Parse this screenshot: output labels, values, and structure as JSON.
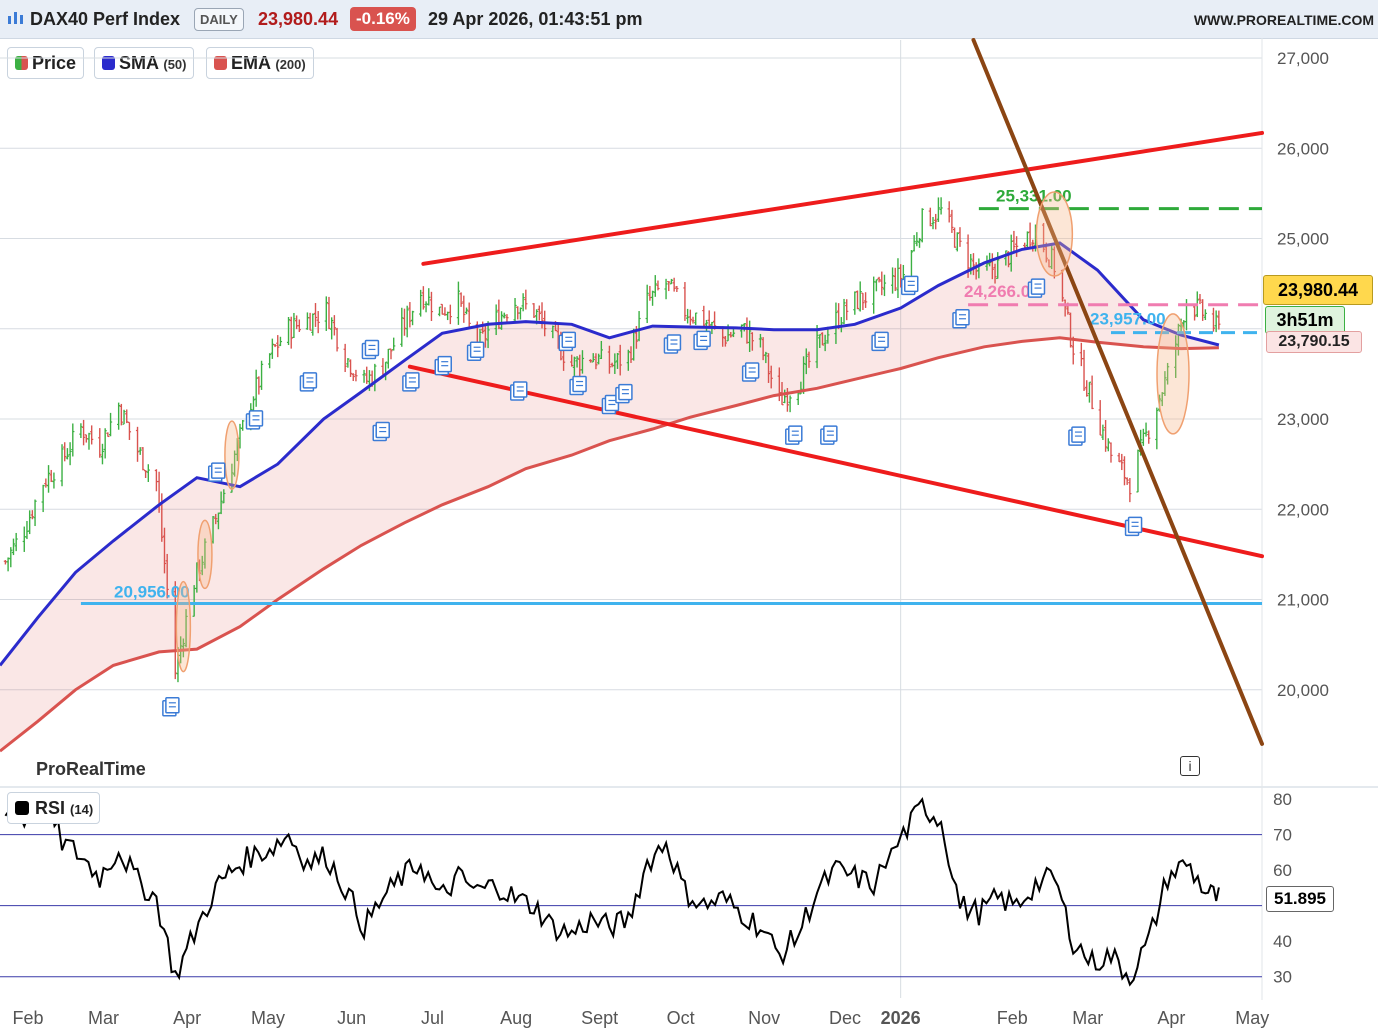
{
  "header": {
    "symbol": "DAX40 Perf Index",
    "timeframe": "DAILY",
    "last_price": "23,980.44",
    "change_pct": "-0.16%",
    "timestamp": "29 Apr 2026, 01:43:51 pm",
    "site": "WWW.PROREALTIME.COM"
  },
  "legend": {
    "price": "Price",
    "sma_label": "SMA",
    "sma_param": "(50)",
    "ema_label": "EMA",
    "ema_param": "(200)",
    "rsi_label": "RSI",
    "rsi_param": "(14)"
  },
  "colors": {
    "sma": "#2b2bcc",
    "ema": "#d9534f",
    "trendline": "#ee1c1c",
    "downtrend": "#8b4513",
    "support": "#3fb3ee",
    "resistance": "#2eaa3a",
    "pink_level": "#f07cb0",
    "up_bar": "#3cb043",
    "down_bar": "#d9534f"
  },
  "watermark": "ProRealTime",
  "tags": {
    "last_price": "23,980.44",
    "countdown": "3h51m",
    "ema_value": "23,790.15",
    "rsi_value": "51.895"
  },
  "chart_data": [
    {
      "type": "candlestick",
      "panel": "price",
      "y_ticks": [
        20000,
        21000,
        22000,
        23000,
        24000,
        25000,
        26000,
        27000
      ],
      "y_tick_labels": [
        "20,000",
        "21,000",
        "22,000",
        "23,000",
        "24,000",
        "25,000",
        "26,000",
        "27,000"
      ],
      "ylim": [
        19000,
        27200
      ],
      "x_ticks": [
        "Feb",
        "Mar",
        "Apr",
        "May",
        "Jun",
        "Jul",
        "Aug",
        "Sept",
        "Oct",
        "Nov",
        "Dec",
        "2026",
        "Feb",
        "Mar",
        "Apr",
        "May"
      ],
      "x_range": [
        "2025-02-01",
        "2026-05-15"
      ],
      "annotations": {
        "levels": [
          {
            "label": "20,956.00",
            "value": 20956
          },
          {
            "label": "25,331.00",
            "value": 25331
          },
          {
            "label": "24,266.00",
            "value": 24266
          },
          {
            "label": "23,957.00",
            "value": 23957
          }
        ],
        "trendlines": [
          {
            "name": "upper-channel",
            "from": [
              "2025-07-08",
              24720
            ],
            "to": [
              "2026-05-15",
              26170
            ]
          },
          {
            "name": "lower-channel",
            "from": [
              "2025-07-03",
              23580
            ],
            "to": [
              "2026-05-15",
              21480
            ]
          },
          {
            "name": "downtrend",
            "from": [
              "2026-01-28",
              27200
            ],
            "to": [
              "2026-05-15",
              19400
            ]
          }
        ]
      },
      "close_path": [
        [
          "2025-02-03",
          21420
        ],
        [
          "2025-02-10",
          21780
        ],
        [
          "2025-02-17",
          22300
        ],
        [
          "2025-02-24",
          22550
        ],
        [
          "2025-03-03",
          22900
        ],
        [
          "2025-03-10",
          22700
        ],
        [
          "2025-03-17",
          23150
        ],
        [
          "2025-03-24",
          22650
        ],
        [
          "2025-03-31",
          22300
        ],
        [
          "2025-04-07",
          20200
        ],
        [
          "2025-04-14",
          21200
        ],
        [
          "2025-04-22",
          21900
        ],
        [
          "2025-04-28",
          22500
        ],
        [
          "2025-05-05",
          23200
        ],
        [
          "2025-05-12",
          23700
        ],
        [
          "2025-05-19",
          24000
        ],
        [
          "2025-05-26",
          24100
        ],
        [
          "2025-06-02",
          24200
        ],
        [
          "2025-06-09",
          23700
        ],
        [
          "2025-06-16",
          23400
        ],
        [
          "2025-06-23",
          23600
        ],
        [
          "2025-06-30",
          24000
        ],
        [
          "2025-07-07",
          24400
        ],
        [
          "2025-07-14",
          24200
        ],
        [
          "2025-07-21",
          24300
        ],
        [
          "2025-07-28",
          23800
        ],
        [
          "2025-08-04",
          24100
        ],
        [
          "2025-08-11",
          24300
        ],
        [
          "2025-08-18",
          24200
        ],
        [
          "2025-08-25",
          23900
        ],
        [
          "2025-09-01",
          23600
        ],
        [
          "2025-09-08",
          23700
        ],
        [
          "2025-09-15",
          23600
        ],
        [
          "2025-09-22",
          23700
        ],
        [
          "2025-09-29",
          24300
        ],
        [
          "2025-10-06",
          24500
        ],
        [
          "2025-10-13",
          24200
        ],
        [
          "2025-10-20",
          24100
        ],
        [
          "2025-10-27",
          23900
        ],
        [
          "2025-11-03",
          24000
        ],
        [
          "2025-11-10",
          23800
        ],
        [
          "2025-11-17",
          23200
        ],
        [
          "2025-11-24",
          23400
        ],
        [
          "2025-12-01",
          23800
        ],
        [
          "2025-12-08",
          24100
        ],
        [
          "2025-12-15",
          24300
        ],
        [
          "2025-12-22",
          24400
        ],
        [
          "2026-01-02",
          24600
        ],
        [
          "2026-01-09",
          25200
        ],
        [
          "2026-01-16",
          25300
        ],
        [
          "2026-01-23",
          24900
        ],
        [
          "2026-01-30",
          24600
        ],
        [
          "2026-02-06",
          24700
        ],
        [
          "2026-02-13",
          24900
        ],
        [
          "2026-02-20",
          25100
        ],
        [
          "2026-02-27",
          24700
        ],
        [
          "2026-03-06",
          23800
        ],
        [
          "2026-03-13",
          23200
        ],
        [
          "2026-03-20",
          22600
        ],
        [
          "2026-03-27",
          22300
        ],
        [
          "2026-04-03",
          22900
        ],
        [
          "2026-04-10",
          23500
        ],
        [
          "2026-04-17",
          24300
        ],
        [
          "2026-04-24",
          24150
        ],
        [
          "2026-04-29",
          23980
        ]
      ],
      "sma_50": [
        [
          "2025-02-01",
          20270
        ],
        [
          "2025-02-15",
          20800
        ],
        [
          "2025-03-01",
          21300
        ],
        [
          "2025-03-15",
          21650
        ],
        [
          "2025-04-01",
          22050
        ],
        [
          "2025-04-15",
          22350
        ],
        [
          "2025-05-01",
          22250
        ],
        [
          "2025-05-15",
          22500
        ],
        [
          "2025-06-01",
          23000
        ],
        [
          "2025-06-15",
          23300
        ],
        [
          "2025-07-01",
          23650
        ],
        [
          "2025-07-15",
          23950
        ],
        [
          "2025-08-01",
          24050
        ],
        [
          "2025-08-15",
          24080
        ],
        [
          "2025-09-01",
          24050
        ],
        [
          "2025-09-15",
          23900
        ],
        [
          "2025-10-01",
          24030
        ],
        [
          "2025-10-15",
          24020
        ],
        [
          "2025-11-01",
          24010
        ],
        [
          "2025-11-15",
          23990
        ],
        [
          "2025-12-01",
          23990
        ],
        [
          "2025-12-15",
          24050
        ],
        [
          "2026-01-01",
          24230
        ],
        [
          "2026-01-15",
          24480
        ],
        [
          "2026-02-01",
          24730
        ],
        [
          "2026-02-15",
          24880
        ],
        [
          "2026-03-01",
          24950
        ],
        [
          "2026-03-15",
          24650
        ],
        [
          "2026-04-01",
          24100
        ],
        [
          "2026-04-15",
          23930
        ],
        [
          "2026-04-29",
          23820
        ]
      ],
      "ema_200": [
        [
          "2025-02-01",
          19320
        ],
        [
          "2025-02-15",
          19650
        ],
        [
          "2025-03-01",
          20000
        ],
        [
          "2025-03-15",
          20270
        ],
        [
          "2025-04-01",
          20420
        ],
        [
          "2025-04-15",
          20450
        ],
        [
          "2025-05-01",
          20700
        ],
        [
          "2025-05-15",
          21000
        ],
        [
          "2025-06-01",
          21340
        ],
        [
          "2025-06-15",
          21600
        ],
        [
          "2025-07-01",
          21850
        ],
        [
          "2025-07-15",
          22050
        ],
        [
          "2025-08-01",
          22250
        ],
        [
          "2025-08-15",
          22450
        ],
        [
          "2025-09-01",
          22600
        ],
        [
          "2025-09-15",
          22760
        ],
        [
          "2025-10-01",
          22890
        ],
        [
          "2025-10-15",
          23020
        ],
        [
          "2025-11-01",
          23150
        ],
        [
          "2025-11-15",
          23260
        ],
        [
          "2025-12-01",
          23340
        ],
        [
          "2025-12-15",
          23440
        ],
        [
          "2026-01-01",
          23560
        ],
        [
          "2026-01-15",
          23680
        ],
        [
          "2026-02-01",
          23800
        ],
        [
          "2026-02-15",
          23860
        ],
        [
          "2026-03-01",
          23900
        ],
        [
          "2026-03-15",
          23850
        ],
        [
          "2026-04-01",
          23800
        ],
        [
          "2026-04-15",
          23780
        ],
        [
          "2026-04-29",
          23790
        ]
      ]
    },
    {
      "type": "line",
      "panel": "rsi",
      "y_ticks": [
        30,
        40,
        50,
        60,
        70,
        80
      ],
      "y_tick_labels": [
        "30",
        "40",
        "",
        "60",
        "70",
        "80"
      ],
      "ylim": [
        24,
        82
      ],
      "reference_lines": [
        30,
        50,
        70
      ],
      "x": [
        "2025-02-03",
        "2025-02-10",
        "2025-02-17",
        "2025-02-24",
        "2025-03-03",
        "2025-03-10",
        "2025-03-17",
        "2025-03-24",
        "2025-03-31",
        "2025-04-07",
        "2025-04-14",
        "2025-04-22",
        "2025-04-28",
        "2025-05-05",
        "2025-05-12",
        "2025-05-19",
        "2025-05-26",
        "2025-06-02",
        "2025-06-09",
        "2025-06-16",
        "2025-06-23",
        "2025-06-30",
        "2025-07-07",
        "2025-07-14",
        "2025-07-21",
        "2025-07-28",
        "2025-08-04",
        "2025-08-11",
        "2025-08-18",
        "2025-08-25",
        "2025-09-01",
        "2025-09-08",
        "2025-09-15",
        "2025-09-22",
        "2025-09-29",
        "2025-10-06",
        "2025-10-13",
        "2025-10-20",
        "2025-10-27",
        "2025-11-03",
        "2025-11-10",
        "2025-11-17",
        "2025-11-24",
        "2025-12-01",
        "2025-12-08",
        "2025-12-15",
        "2025-12-22",
        "2026-01-02",
        "2026-01-09",
        "2026-01-16",
        "2026-01-23",
        "2026-01-30",
        "2026-02-06",
        "2026-02-13",
        "2026-02-20",
        "2026-02-27",
        "2026-03-06",
        "2026-03-13",
        "2026-03-20",
        "2026-03-27",
        "2026-04-03",
        "2026-04-10",
        "2026-04-17",
        "2026-04-24",
        "2026-04-29"
      ],
      "values": [
        78,
        74,
        80,
        68,
        64,
        58,
        66,
        57,
        52,
        30,
        42,
        55,
        60,
        64,
        66,
        70,
        62,
        64,
        55,
        44,
        52,
        58,
        62,
        52,
        58,
        54,
        56,
        52,
        50,
        44,
        42,
        46,
        44,
        46,
        62,
        68,
        54,
        50,
        52,
        48,
        44,
        36,
        42,
        54,
        60,
        58,
        56,
        70,
        78,
        74,
        50,
        48,
        52,
        50,
        56,
        58,
        40,
        34,
        36,
        30,
        40,
        58,
        62,
        54,
        52
      ]
    }
  ]
}
